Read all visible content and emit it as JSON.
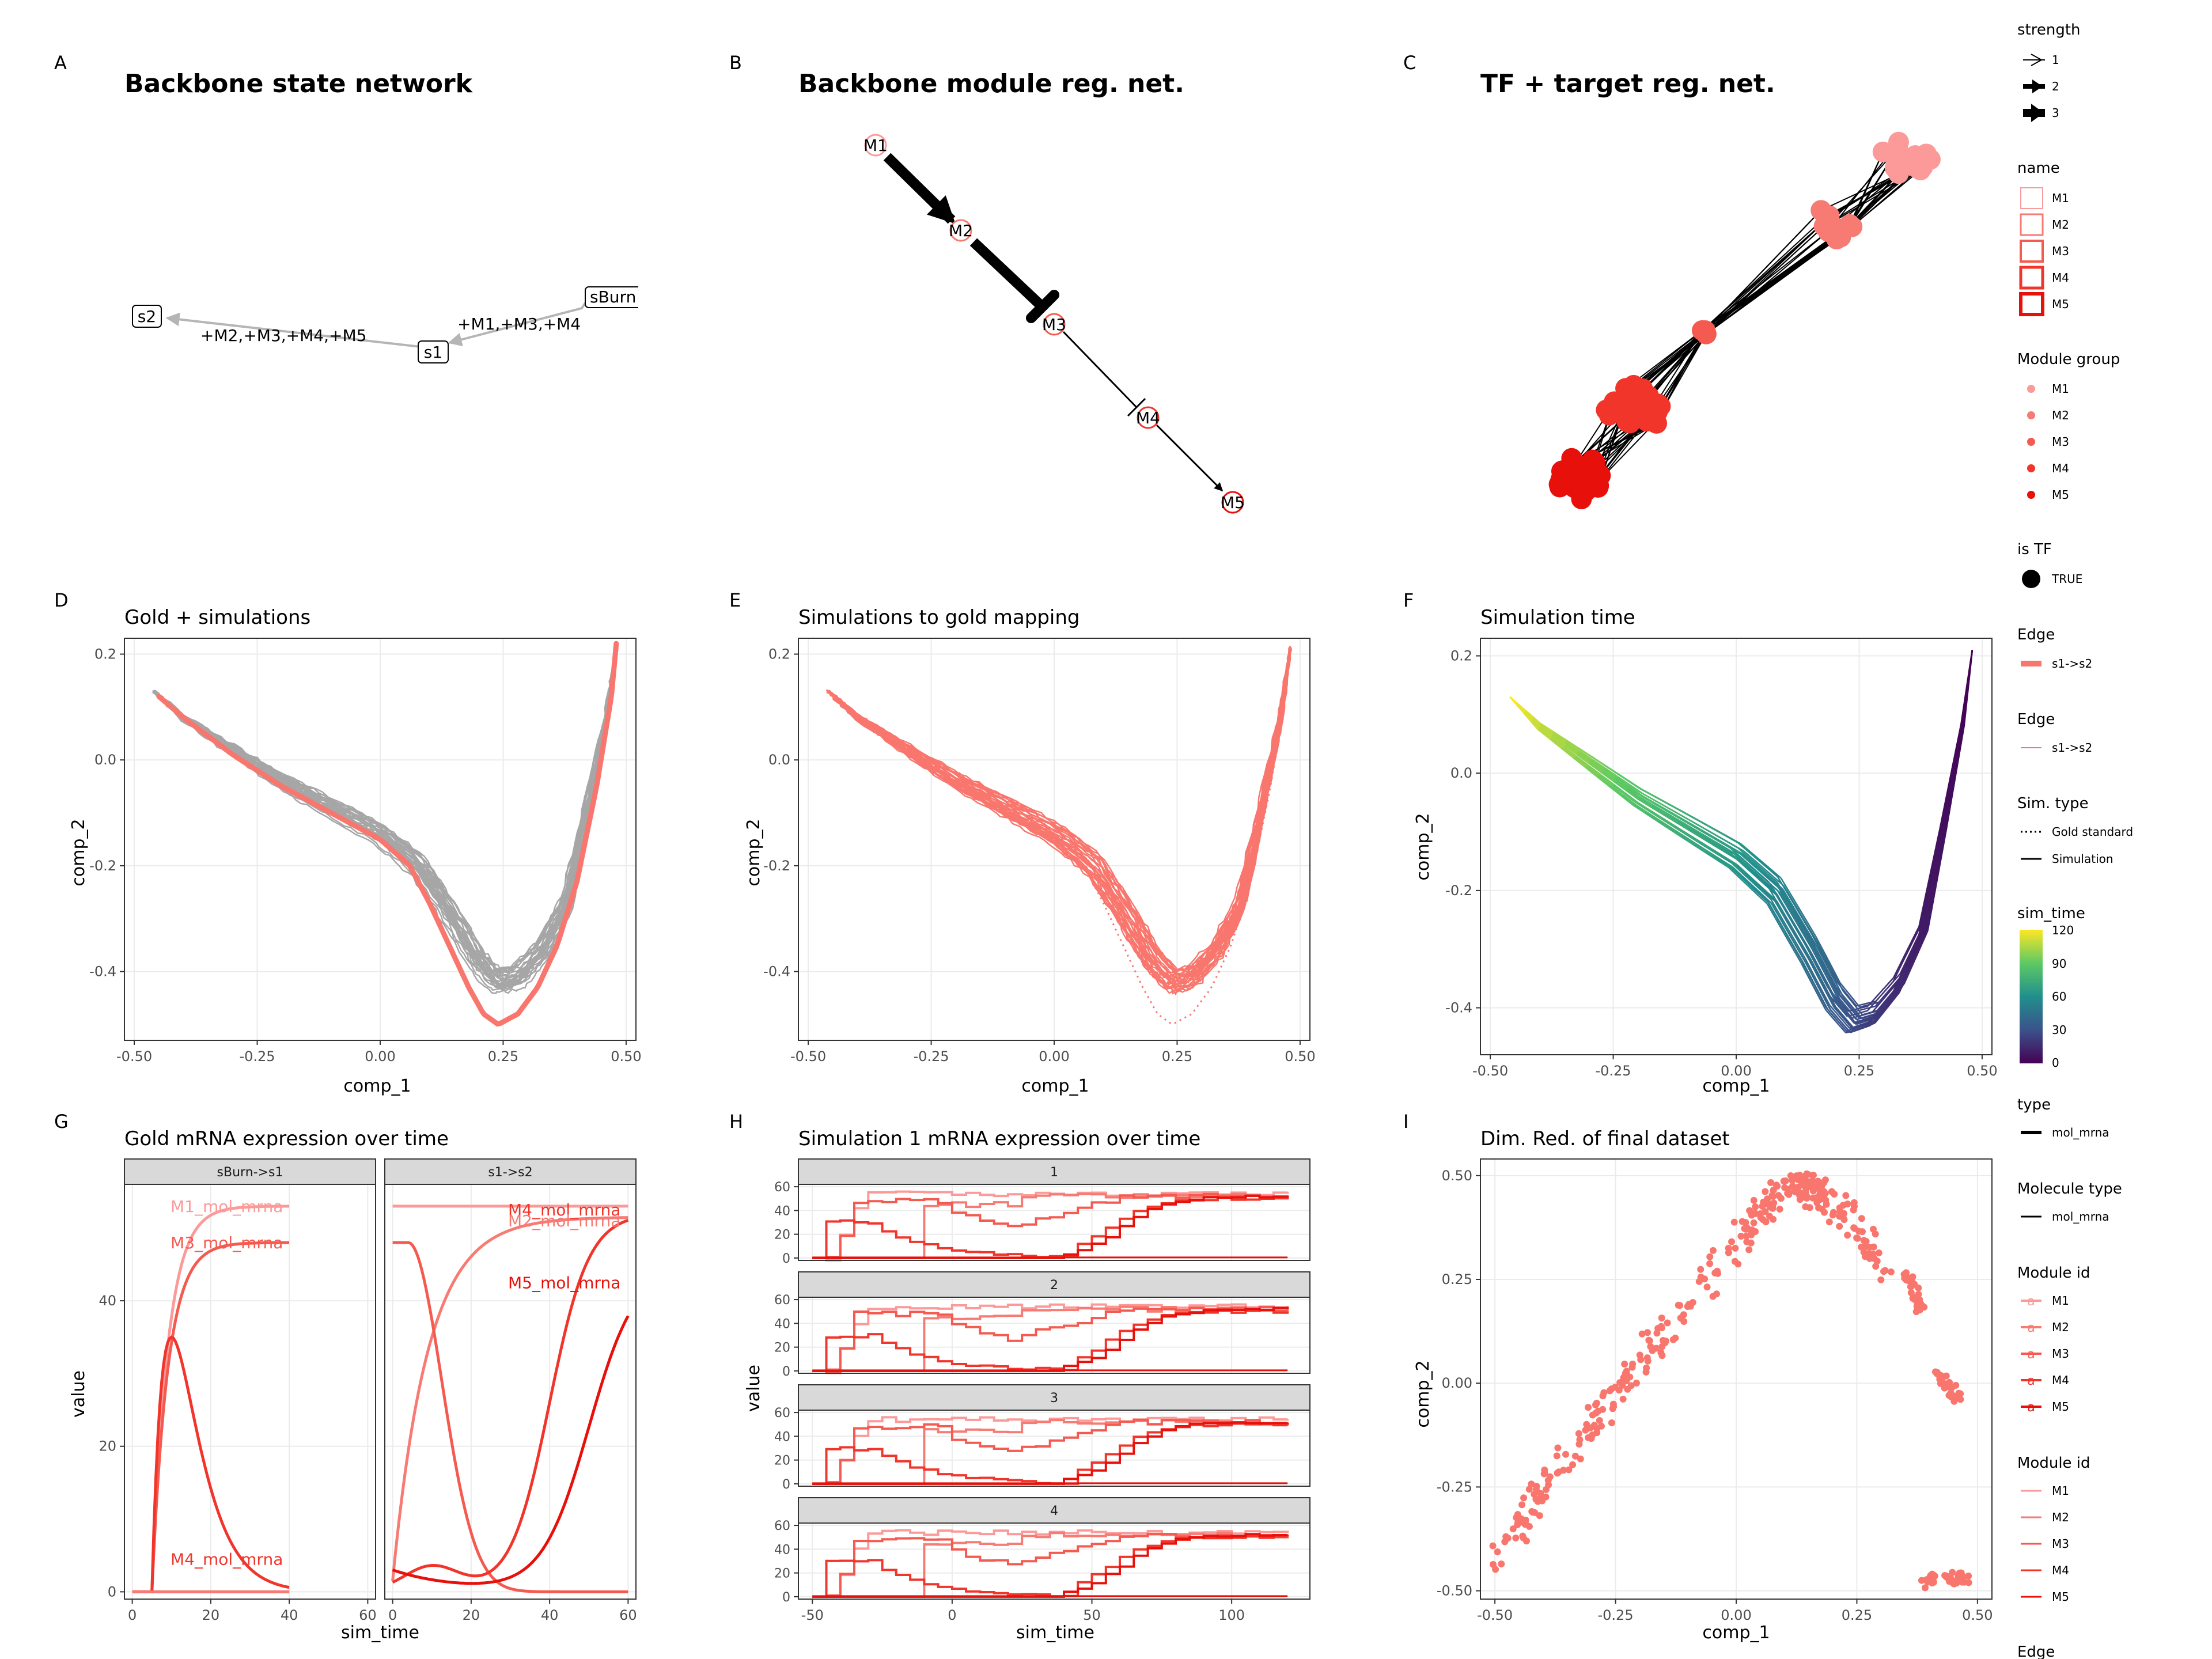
{
  "figure": {
    "panel_letters": [
      "A",
      "B",
      "C",
      "D",
      "E",
      "F",
      "G",
      "H",
      "I"
    ]
  },
  "colors": {
    "salmon": "#F8766D",
    "gold_line": "#F8766D",
    "sim_grey": "#A6A6A6",
    "m1": "#FB9A99",
    "m2": "#F77A73",
    "m3": "#F55A50",
    "m4": "#F2352B",
    "m5": "#E8100A",
    "network_edge": "#000000",
    "backbone_edge": "#B5B5B5",
    "strip_fill": "#D9D9D9",
    "panel_border": "#333333",
    "grid": "#EBEBEB",
    "viridis_high": "#FDE725",
    "viridis_low": "#440154"
  },
  "panels": {
    "A": {
      "title": "Backbone state network",
      "nodes": [
        "s2",
        "s1",
        "sBurn"
      ],
      "edge_labels": [
        "+M2,+M3,+M4,+M5",
        "+M1,+M3,+M4"
      ]
    },
    "B": {
      "title": "Backbone module reg. net.",
      "nodes": [
        "M1",
        "M2",
        "M3",
        "M4",
        "M5"
      ]
    },
    "C": {
      "title": "TF + target reg. net."
    }
  },
  "legend": {
    "strength": {
      "title": "strength",
      "items": [
        "1",
        "2",
        "3"
      ]
    },
    "name": {
      "title": "name",
      "items": [
        "M1",
        "M2",
        "M3",
        "M4",
        "M5"
      ]
    },
    "module_group": {
      "title": "Module group",
      "items": [
        "M1",
        "M2",
        "M3",
        "M4",
        "M5"
      ]
    },
    "is_tf": {
      "title": "is TF",
      "items": [
        "TRUE"
      ]
    },
    "edge1": {
      "title": "Edge",
      "items": [
        "s1->s2"
      ]
    },
    "edge2": {
      "title": "Edge",
      "items": [
        "s1->s2"
      ]
    },
    "sim_type": {
      "title": "Sim. type",
      "items": [
        "Gold standard",
        "Simulation"
      ]
    },
    "sim_time": {
      "title": "sim_time",
      "ticks": [
        "120",
        "90",
        "60",
        "30",
        "0"
      ]
    },
    "type": {
      "title": "type",
      "items": [
        "mol_mrna"
      ]
    },
    "molecule_type": {
      "title": "Molecule type",
      "items": [
        "mol_mrna"
      ]
    },
    "module_id1": {
      "title": "Module id",
      "items": [
        "M1",
        "M2",
        "M3",
        "M4",
        "M5"
      ]
    },
    "module_id2": {
      "title": "Module id",
      "items": [
        "M1",
        "M2",
        "M3",
        "M4",
        "M5"
      ]
    },
    "trailing": {
      "title": "Edge"
    }
  },
  "chart_data": [
    {
      "panel": "D",
      "type": "line",
      "title": "Gold + simulations",
      "xlabel": "comp_1",
      "ylabel": "comp_2",
      "xlim": [
        -0.52,
        0.52
      ],
      "ylim": [
        -0.53,
        0.23
      ],
      "xticks": [
        "-0.50",
        "-0.25",
        "0.00",
        "0.25",
        "0.50"
      ],
      "yticks": [
        "0.2",
        "0.0",
        "-0.2",
        "-0.4"
      ],
      "series": [
        {
          "role": "simulations",
          "x": [
            -0.46,
            -0.4,
            -0.3,
            -0.2,
            -0.1,
            0.0,
            0.08,
            0.15,
            0.2,
            0.24,
            0.28,
            0.33,
            0.38,
            0.42,
            0.46,
            0.48
          ],
          "y": [
            0.13,
            0.08,
            0.02,
            -0.04,
            -0.09,
            -0.14,
            -0.2,
            -0.3,
            -0.38,
            -0.42,
            -0.41,
            -0.36,
            -0.27,
            -0.1,
            0.08,
            0.21
          ]
        },
        {
          "role": "gold",
          "x": [
            -0.45,
            -0.4,
            -0.3,
            -0.2,
            -0.1,
            0.0,
            0.06,
            0.1,
            0.14,
            0.18,
            0.21,
            0.24,
            0.28,
            0.32,
            0.36,
            0.4,
            0.44,
            0.47,
            0.48
          ],
          "y": [
            0.12,
            0.08,
            0.01,
            -0.05,
            -0.1,
            -0.15,
            -0.2,
            -0.27,
            -0.35,
            -0.43,
            -0.48,
            -0.5,
            -0.48,
            -0.43,
            -0.35,
            -0.23,
            -0.05,
            0.12,
            0.22
          ]
        }
      ]
    },
    {
      "panel": "E",
      "type": "line",
      "title": "Simulations to gold mapping",
      "xlabel": "comp_1",
      "ylabel": "comp_2",
      "xlim": [
        -0.52,
        0.52
      ],
      "ylim": [
        -0.53,
        0.23
      ],
      "xticks": [
        "-0.50",
        "-0.25",
        "0.00",
        "0.25",
        "0.50"
      ],
      "yticks": [
        "0.2",
        "0.0",
        "-0.2",
        "-0.4"
      ]
    },
    {
      "panel": "F",
      "type": "line",
      "title": "Simulation time",
      "xlabel": "comp_1",
      "ylabel": "comp_2",
      "xlim": [
        -0.52,
        0.52
      ],
      "ylim": [
        -0.48,
        0.23
      ],
      "xticks": [
        "-0.50",
        "-0.25",
        "0.00",
        "0.25",
        "0.50"
      ],
      "yticks": [
        "0.2",
        "0.0",
        "-0.2",
        "-0.4"
      ],
      "color_scale": {
        "name": "sim_time",
        "min": 0,
        "max": 120
      }
    },
    {
      "panel": "G",
      "type": "line",
      "title": "Gold mRNA expression over time",
      "xlabel": "sim_time",
      "ylabel": "value",
      "facets": [
        "sBurn->s1",
        "s1->s2"
      ],
      "ylim": [
        -1,
        56
      ],
      "xlim": [
        -2,
        62
      ],
      "yticks": [
        "0",
        "20",
        "40"
      ],
      "xticks": [
        "0",
        "20",
        "40",
        "60"
      ],
      "labels": {
        "sBurn->s1": [
          "M1_mol_mrna",
          "M3_mol_mrna",
          "M4_mol_mrna"
        ],
        "s1->s2": [
          "M4_mol_mrna",
          "M2_mol_mrna",
          "M5_mol_mrna"
        ]
      }
    },
    {
      "panel": "H",
      "type": "line",
      "title": "Simulation 1 mRNA expression over time",
      "xlabel": "sim_time",
      "ylabel": "value",
      "facets": [
        "1",
        "2",
        "3",
        "4"
      ],
      "xlim": [
        -55,
        128
      ],
      "ylim": [
        -2,
        62
      ],
      "xticks": [
        "-50",
        "0",
        "50",
        "100"
      ],
      "yticks": [
        "60",
        "40",
        "20",
        "0"
      ]
    },
    {
      "panel": "I",
      "type": "scatter",
      "title": "Dim. Red. of final dataset",
      "xlabel": "comp_1",
      "ylabel": "comp_2",
      "xlim": [
        -0.53,
        0.53
      ],
      "ylim": [
        -0.52,
        0.54
      ],
      "xticks": [
        "-0.50",
        "-0.25",
        "0.00",
        "0.25",
        "0.50"
      ],
      "yticks": [
        "0.50",
        "0.25",
        "0.00",
        "-0.25",
        "-0.50"
      ],
      "clusters": [
        {
          "x": [
            -0.5,
            -0.45,
            -0.4,
            -0.3,
            -0.2,
            -0.1,
            0.0,
            0.05,
            0.1,
            0.15,
            0.2,
            0.25,
            0.3
          ],
          "y": [
            -0.42,
            -0.35,
            -0.25,
            -0.1,
            0.05,
            0.2,
            0.33,
            0.42,
            0.47,
            0.47,
            0.44,
            0.38,
            0.28
          ]
        },
        {
          "x": [
            0.35,
            0.37,
            0.38
          ],
          "y": [
            0.27,
            0.22,
            0.18
          ]
        },
        {
          "x": [
            0.42,
            0.44,
            0.46
          ],
          "y": [
            0.02,
            -0.01,
            -0.03
          ]
        },
        {
          "x": [
            0.38,
            0.43,
            0.48
          ],
          "y": [
            -0.48,
            -0.47,
            -0.47
          ]
        }
      ]
    }
  ]
}
